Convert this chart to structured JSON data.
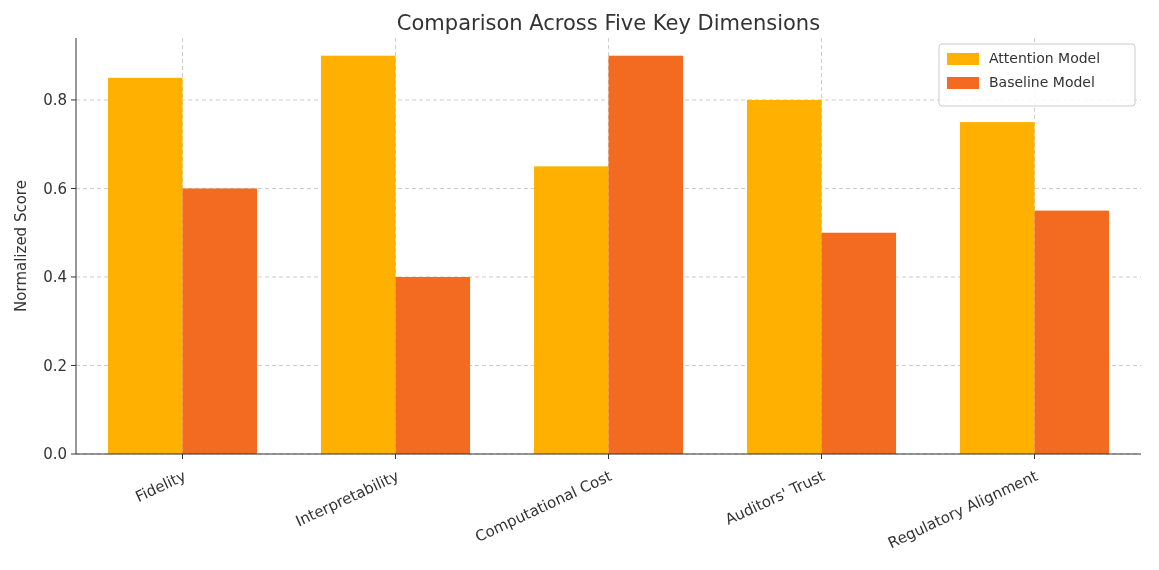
{
  "chart_data": {
    "type": "bar",
    "title": "Comparison Across Five Key Dimensions",
    "ylabel": "Normalized Score",
    "categories": [
      "Fidelity",
      "Interpretability",
      "Computational Cost",
      "Auditors' Trust",
      "Regulatory Alignment"
    ],
    "series": [
      {
        "name": "Attention Model",
        "color": "#ffb000",
        "values": [
          0.85,
          0.9,
          0.65,
          0.8,
          0.75
        ]
      },
      {
        "name": "Baseline Model",
        "color": "#f26b21",
        "values": [
          0.6,
          0.4,
          0.9,
          0.5,
          0.55
        ]
      }
    ],
    "ylim": [
      0,
      0.94
    ],
    "yticks": [
      {
        "value": 0,
        "label": "0.0"
      },
      {
        "value": 0.2,
        "label": "0.2"
      },
      {
        "value": 0.4,
        "label": "0.4"
      },
      {
        "value": 0.6,
        "label": "0.6"
      },
      {
        "value": 0.8,
        "label": "0.8"
      }
    ],
    "grid": true,
    "legend": "top right"
  }
}
